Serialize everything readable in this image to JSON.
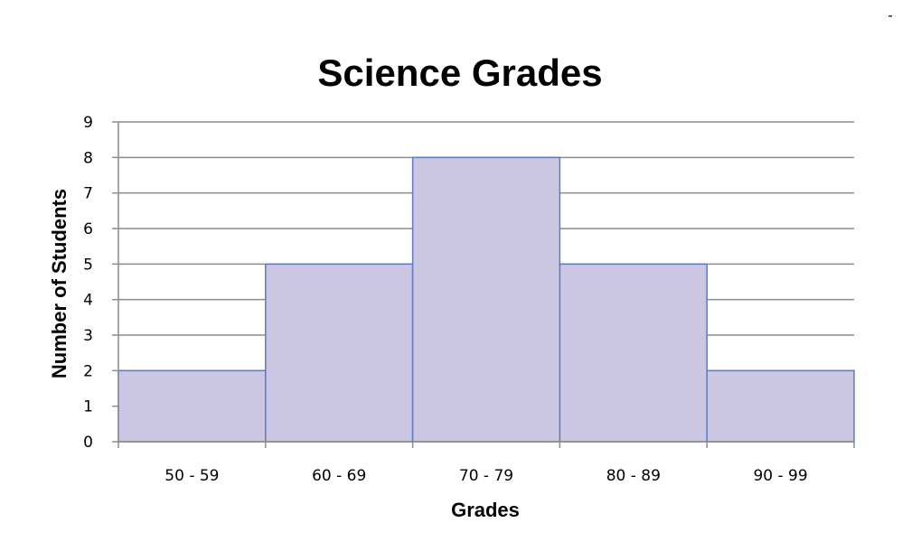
{
  "chart_data": {
    "type": "bar",
    "title": "Science Grades",
    "xlabel": "Grades",
    "ylabel": "Number of Students",
    "categories": [
      "50 - 59",
      "60 - 69",
      "70 - 79",
      "80 - 89",
      "90 - 99"
    ],
    "values": [
      2,
      5,
      8,
      5,
      2
    ],
    "ylim": [
      0,
      9
    ],
    "yticks": [
      0,
      1,
      2,
      3,
      4,
      5,
      6,
      7,
      8,
      9
    ],
    "grid": true,
    "legend": "none",
    "bar_color": "#cbc6e1",
    "bar_edge_color": "#5f7bbd",
    "grid_color": "#8c8c8c",
    "corner_mark": "-"
  }
}
